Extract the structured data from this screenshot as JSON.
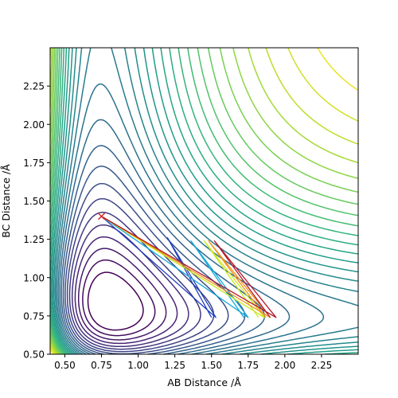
{
  "chart_data": {
    "type": "contour",
    "xlabel": "AB Distance /Å",
    "ylabel": "BC Distance /Å",
    "xlim": [
      0.4,
      2.5
    ],
    "ylim": [
      0.5,
      2.5
    ],
    "xticks": [
      "0.50",
      "0.75",
      "1.00",
      "1.25",
      "1.50",
      "1.75",
      "2.00",
      "2.25"
    ],
    "yticks": [
      "0.50",
      "0.75",
      "1.00",
      "1.25",
      "1.50",
      "1.75",
      "2.00",
      "2.25"
    ],
    "grid": false,
    "colormap": "viridis",
    "surface": {
      "kind": "LEPS-like potential energy surface",
      "equilibrium_distance": 0.74,
      "contour_levels": 30
    },
    "start_marker": {
      "x": 0.75,
      "y": 1.4,
      "symbol": "x",
      "color": "#d62728"
    },
    "trajectories": [
      {
        "color": "#1f3fbf",
        "points": [
          [
            0.75,
            1.4
          ],
          [
            1.53,
            0.74
          ],
          [
            1.2,
            1.26
          ],
          [
            1.5,
            0.74
          ]
        ]
      },
      {
        "color": "#17a9d9",
        "points": [
          [
            0.75,
            1.4
          ],
          [
            1.75,
            0.74
          ],
          [
            1.36,
            1.24
          ],
          [
            1.72,
            0.74
          ]
        ]
      },
      {
        "color": "#c8e81f",
        "points": [
          [
            0.75,
            1.4
          ],
          [
            1.86,
            0.74
          ],
          [
            1.45,
            1.24
          ],
          [
            1.82,
            0.74
          ]
        ]
      },
      {
        "color": "#f28f1c",
        "points": [
          [
            0.75,
            1.4
          ],
          [
            1.9,
            0.74
          ],
          [
            1.48,
            1.24
          ],
          [
            1.87,
            0.74
          ]
        ]
      },
      {
        "color": "#b2182b",
        "points": [
          [
            0.75,
            1.4
          ],
          [
            1.94,
            0.74
          ],
          [
            1.52,
            1.24
          ],
          [
            1.9,
            0.74
          ]
        ]
      }
    ]
  }
}
